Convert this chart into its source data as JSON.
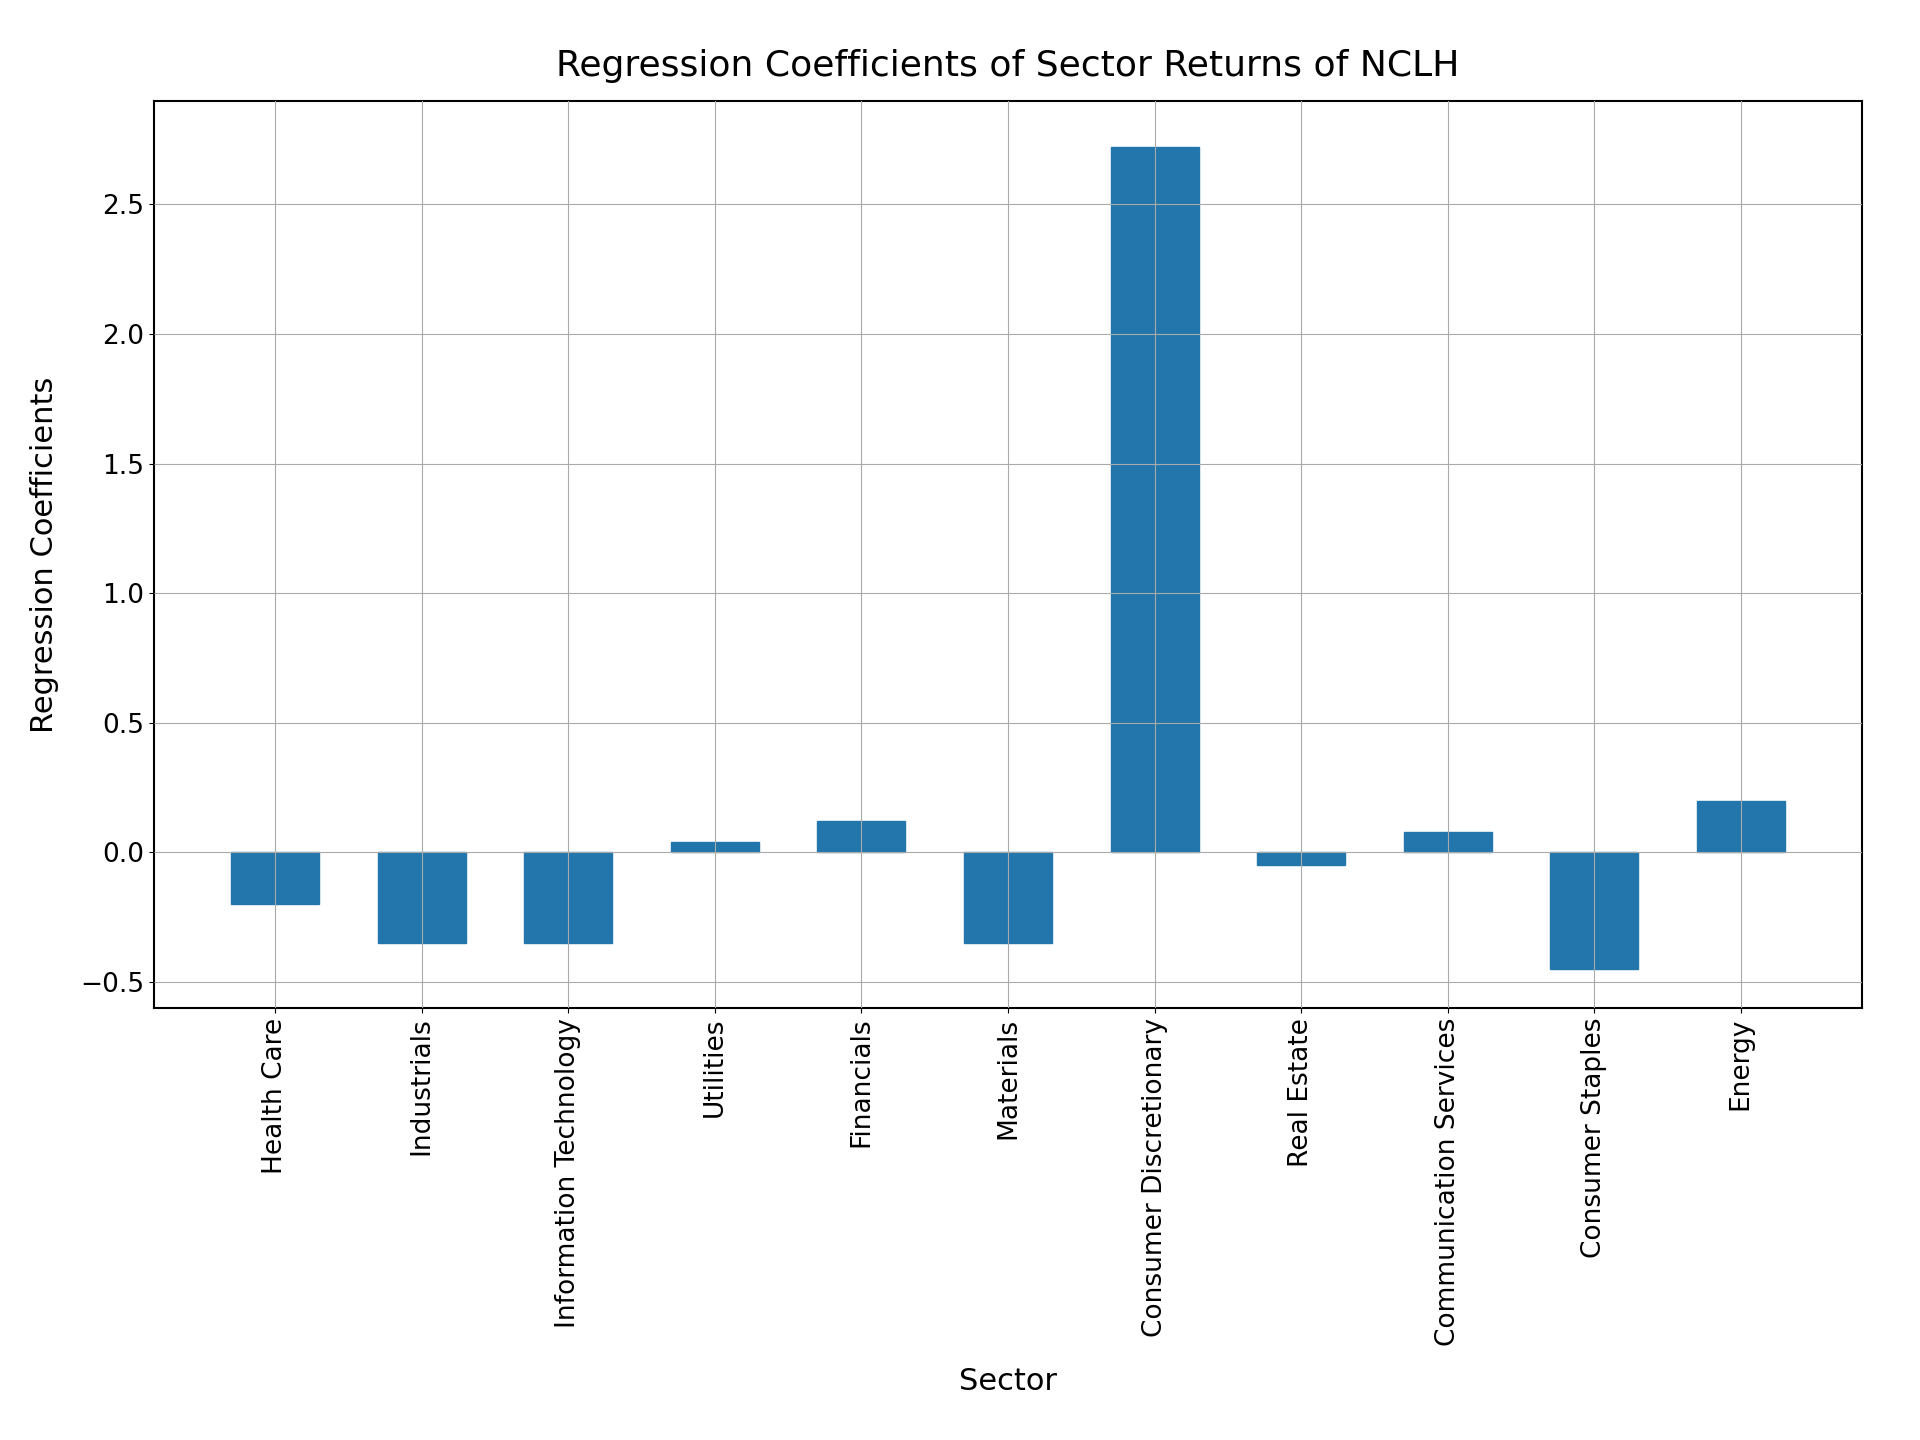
{
  "categories": [
    "Health Care",
    "Industrials",
    "Information Technology",
    "Utilities",
    "Financials",
    "Materials",
    "Consumer Discretionary",
    "Real Estate",
    "Communication Services",
    "Consumer Staples",
    "Energy"
  ],
  "values": [
    -0.2,
    -0.35,
    -0.35,
    0.04,
    0.12,
    -0.35,
    2.72,
    -0.05,
    0.08,
    -0.45,
    0.2
  ],
  "bar_color": "#2276AC",
  "title": "Regression Coefficients of Sector Returns of NCLH",
  "xlabel": "Sector",
  "ylabel": "Regression Coefficients",
  "title_fontsize": 26,
  "label_fontsize": 22,
  "tick_fontsize": 19,
  "ylim": [
    -0.6,
    2.9
  ],
  "background_color": "#ffffff",
  "grid_color": "#aaaaaa"
}
